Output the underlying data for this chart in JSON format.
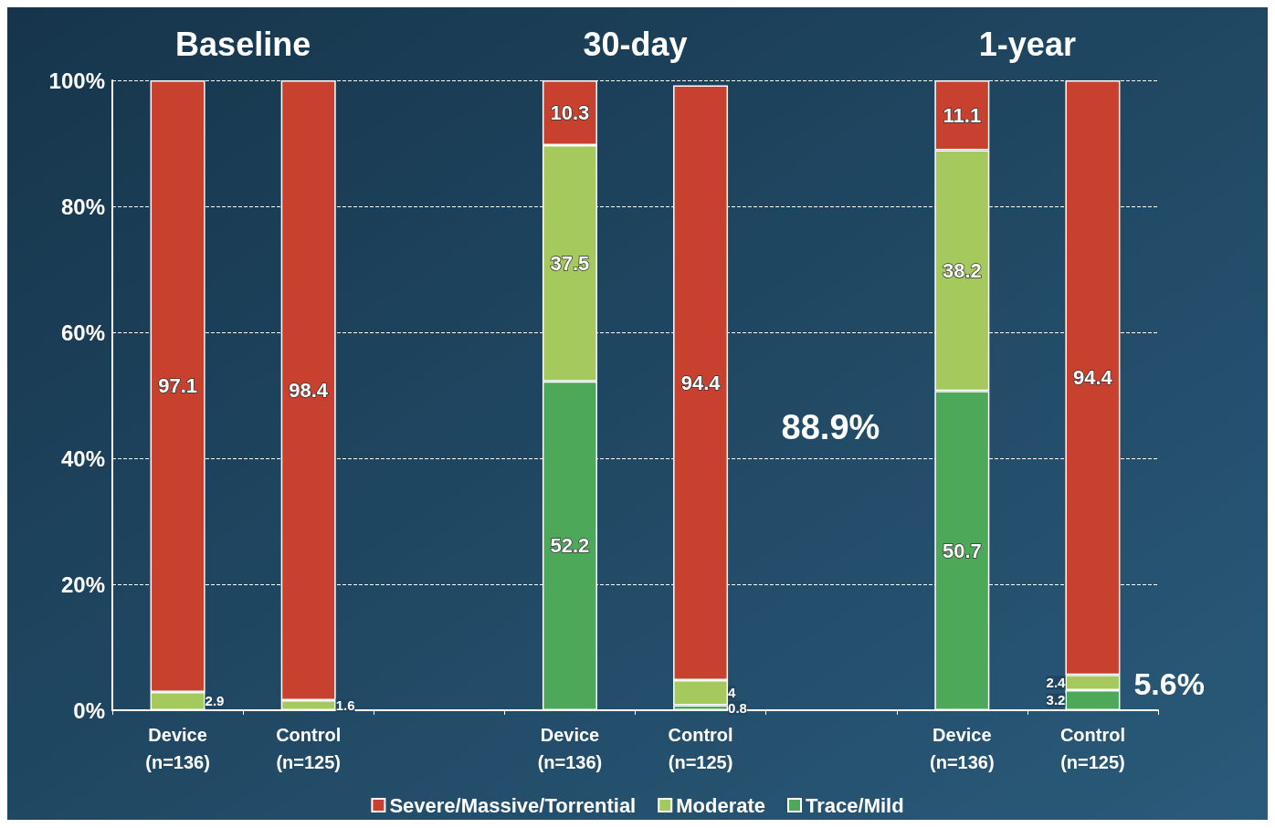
{
  "chart_data": {
    "type": "bar",
    "stacked": true,
    "categories": [
      "Device\n(n=136)",
      "Control\n(n=125)",
      null,
      "Device\n(n=136)",
      "Control\n(n=125)",
      null,
      "Device\n(n=136)",
      "Control\n(n=125)"
    ],
    "series": [
      {
        "name": "Trace/Mild",
        "color": "#4ea85a",
        "values": [
          0,
          0,
          null,
          52.2,
          0.8,
          null,
          50.7,
          3.2
        ],
        "value_labels": [
          null,
          null,
          null,
          "52.2",
          "0.8",
          null,
          "50.7",
          "3.2"
        ]
      },
      {
        "name": "Moderate",
        "color": "#a5c95c",
        "values": [
          2.9,
          1.6,
          null,
          37.5,
          4,
          null,
          38.2,
          2.4
        ],
        "value_labels": [
          "2.9",
          "1.6",
          null,
          "37.5",
          "4",
          null,
          "38.2",
          "2.4"
        ]
      },
      {
        "name": "Severe/Massive/Torrential",
        "color": "#c8412e",
        "values": [
          97.1,
          98.4,
          null,
          10.3,
          94.4,
          null,
          11.1,
          94.4
        ],
        "value_labels": [
          "97.1",
          "98.4",
          null,
          "10.3",
          "94.4",
          null,
          "11.1",
          "94.4"
        ]
      }
    ],
    "ylim": [
      0,
      100
    ],
    "yticks": [
      {
        "value": 0,
        "label": "0%"
      },
      {
        "value": 20,
        "label": "20%"
      },
      {
        "value": 40,
        "label": "40%"
      },
      {
        "value": 60,
        "label": "60%"
      },
      {
        "value": 80,
        "label": "80%"
      },
      {
        "value": 100,
        "label": "100%"
      }
    ],
    "grid": "y",
    "legend": "bottom",
    "annotations": [
      "Baseline",
      "30-day",
      "1-year",
      "88.9%",
      "5.6%"
    ]
  }
}
